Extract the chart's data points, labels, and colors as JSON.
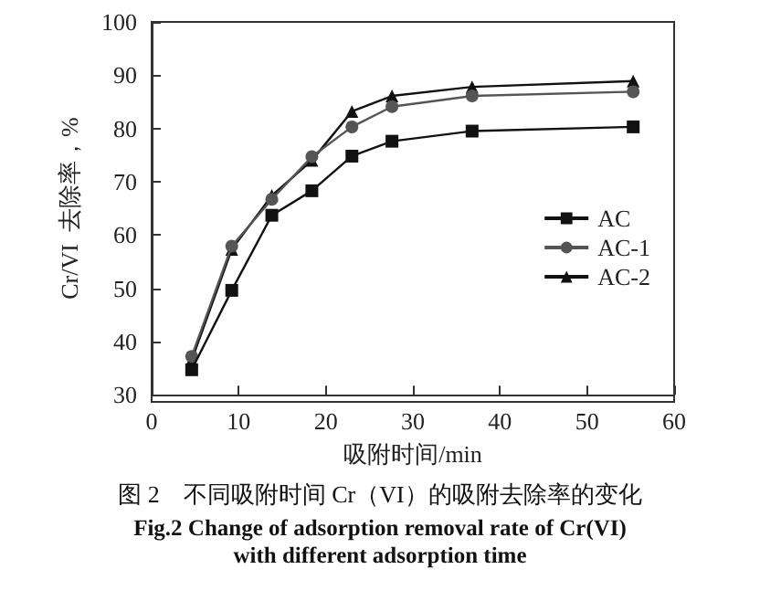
{
  "chart_data": {
    "type": "line",
    "xlabel": "吸附时间/min",
    "ylabel": "Cr/VI  去除率，%",
    "x": [
      4.6,
      9.2,
      13.8,
      18.4,
      23,
      27.6,
      36.8,
      55.3
    ],
    "series": [
      {
        "name": "AC",
        "color": "#111111",
        "marker": "square",
        "values": [
          34.7,
          49.6,
          63.7,
          68.3,
          74.8,
          77.6,
          79.5,
          80.3
        ]
      },
      {
        "name": "AC-1",
        "color": "#555555",
        "marker": "circle",
        "values": [
          37.2,
          57.9,
          66.7,
          74.7,
          80.3,
          84.1,
          86.1,
          86.9
        ]
      },
      {
        "name": "AC-2",
        "color": "#111111",
        "marker": "triangle",
        "values": [
          36.5,
          57.3,
          67.4,
          74.0,
          83.2,
          86.1,
          87.8,
          88.9
        ]
      }
    ],
    "xlim": [
      0,
      60
    ],
    "xticks": [
      0,
      10,
      20,
      30,
      40,
      50,
      60
    ],
    "ylim": [
      30,
      100
    ],
    "yticks": [
      30,
      40,
      50,
      60,
      70,
      80,
      90,
      100
    ],
    "grid": false,
    "legend": "right",
    "line_style": "solid",
    "annotations": [
      "图 2　不同吸附时间 Cr（VI）的吸附去除率的变化",
      "Fig.2 Change of adsorption removal rate of Cr(VI) with different adsorption time"
    ]
  }
}
